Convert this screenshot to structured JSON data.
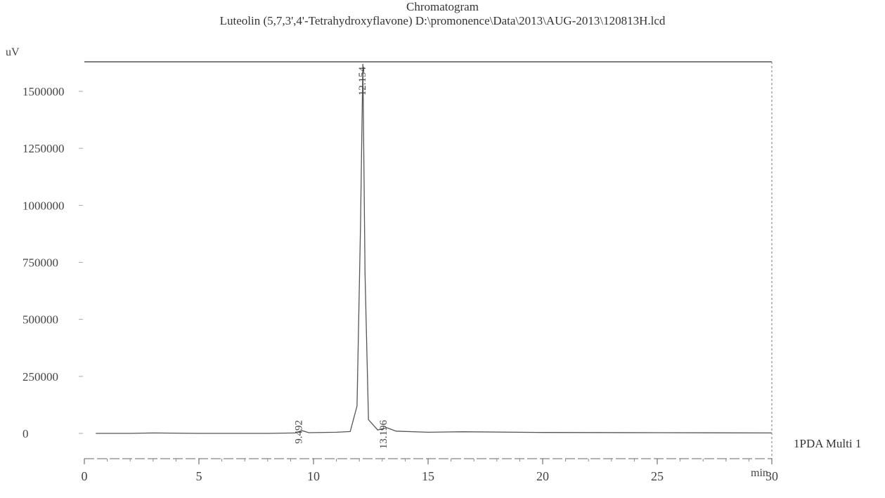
{
  "chart_data": {
    "type": "line",
    "title": "Chromatogram",
    "subtitle": "Luteolin (5,7,3',4'-Tetrahydroxyflavone) D:\\promonence\\Data\\2013\\AUG-2013\\120813H.lcd",
    "xlabel": "min",
    "ylabel": "uV",
    "xlim": [
      0,
      30
    ],
    "ylim": [
      -80000,
      1660000
    ],
    "x_ticks": [
      0,
      5,
      10,
      15,
      20,
      25,
      30
    ],
    "y_ticks": [
      0,
      250000,
      500000,
      750000,
      1000000,
      1250000,
      1500000
    ],
    "y_tick_labels": [
      "0",
      "250000",
      "500000",
      "750000",
      "1000000",
      "1250000",
      "1500000"
    ],
    "series": [
      {
        "name": "1PDA Multi 1",
        "x": [
          0.5,
          2.0,
          3.0,
          5.0,
          8.0,
          9.2,
          9.492,
          9.8,
          11.0,
          11.6,
          11.9,
          12.05,
          12.154,
          12.25,
          12.4,
          12.8,
          13.196,
          13.6,
          15.0,
          16.5,
          20.0,
          25.0,
          30.0
        ],
        "y": [
          0,
          0,
          2000,
          0,
          0,
          2000,
          12000,
          3000,
          5000,
          8000,
          120000,
          900000,
          1620000,
          700000,
          60000,
          15000,
          25000,
          10000,
          5000,
          7000,
          4000,
          3000,
          2000
        ]
      }
    ],
    "peak_labels": [
      {
        "x": 9.492,
        "text": "9.492"
      },
      {
        "x": 12.154,
        "text": "12.154"
      },
      {
        "x": 13.196,
        "text": "13.196"
      }
    ],
    "grid": false,
    "legend": "right"
  }
}
